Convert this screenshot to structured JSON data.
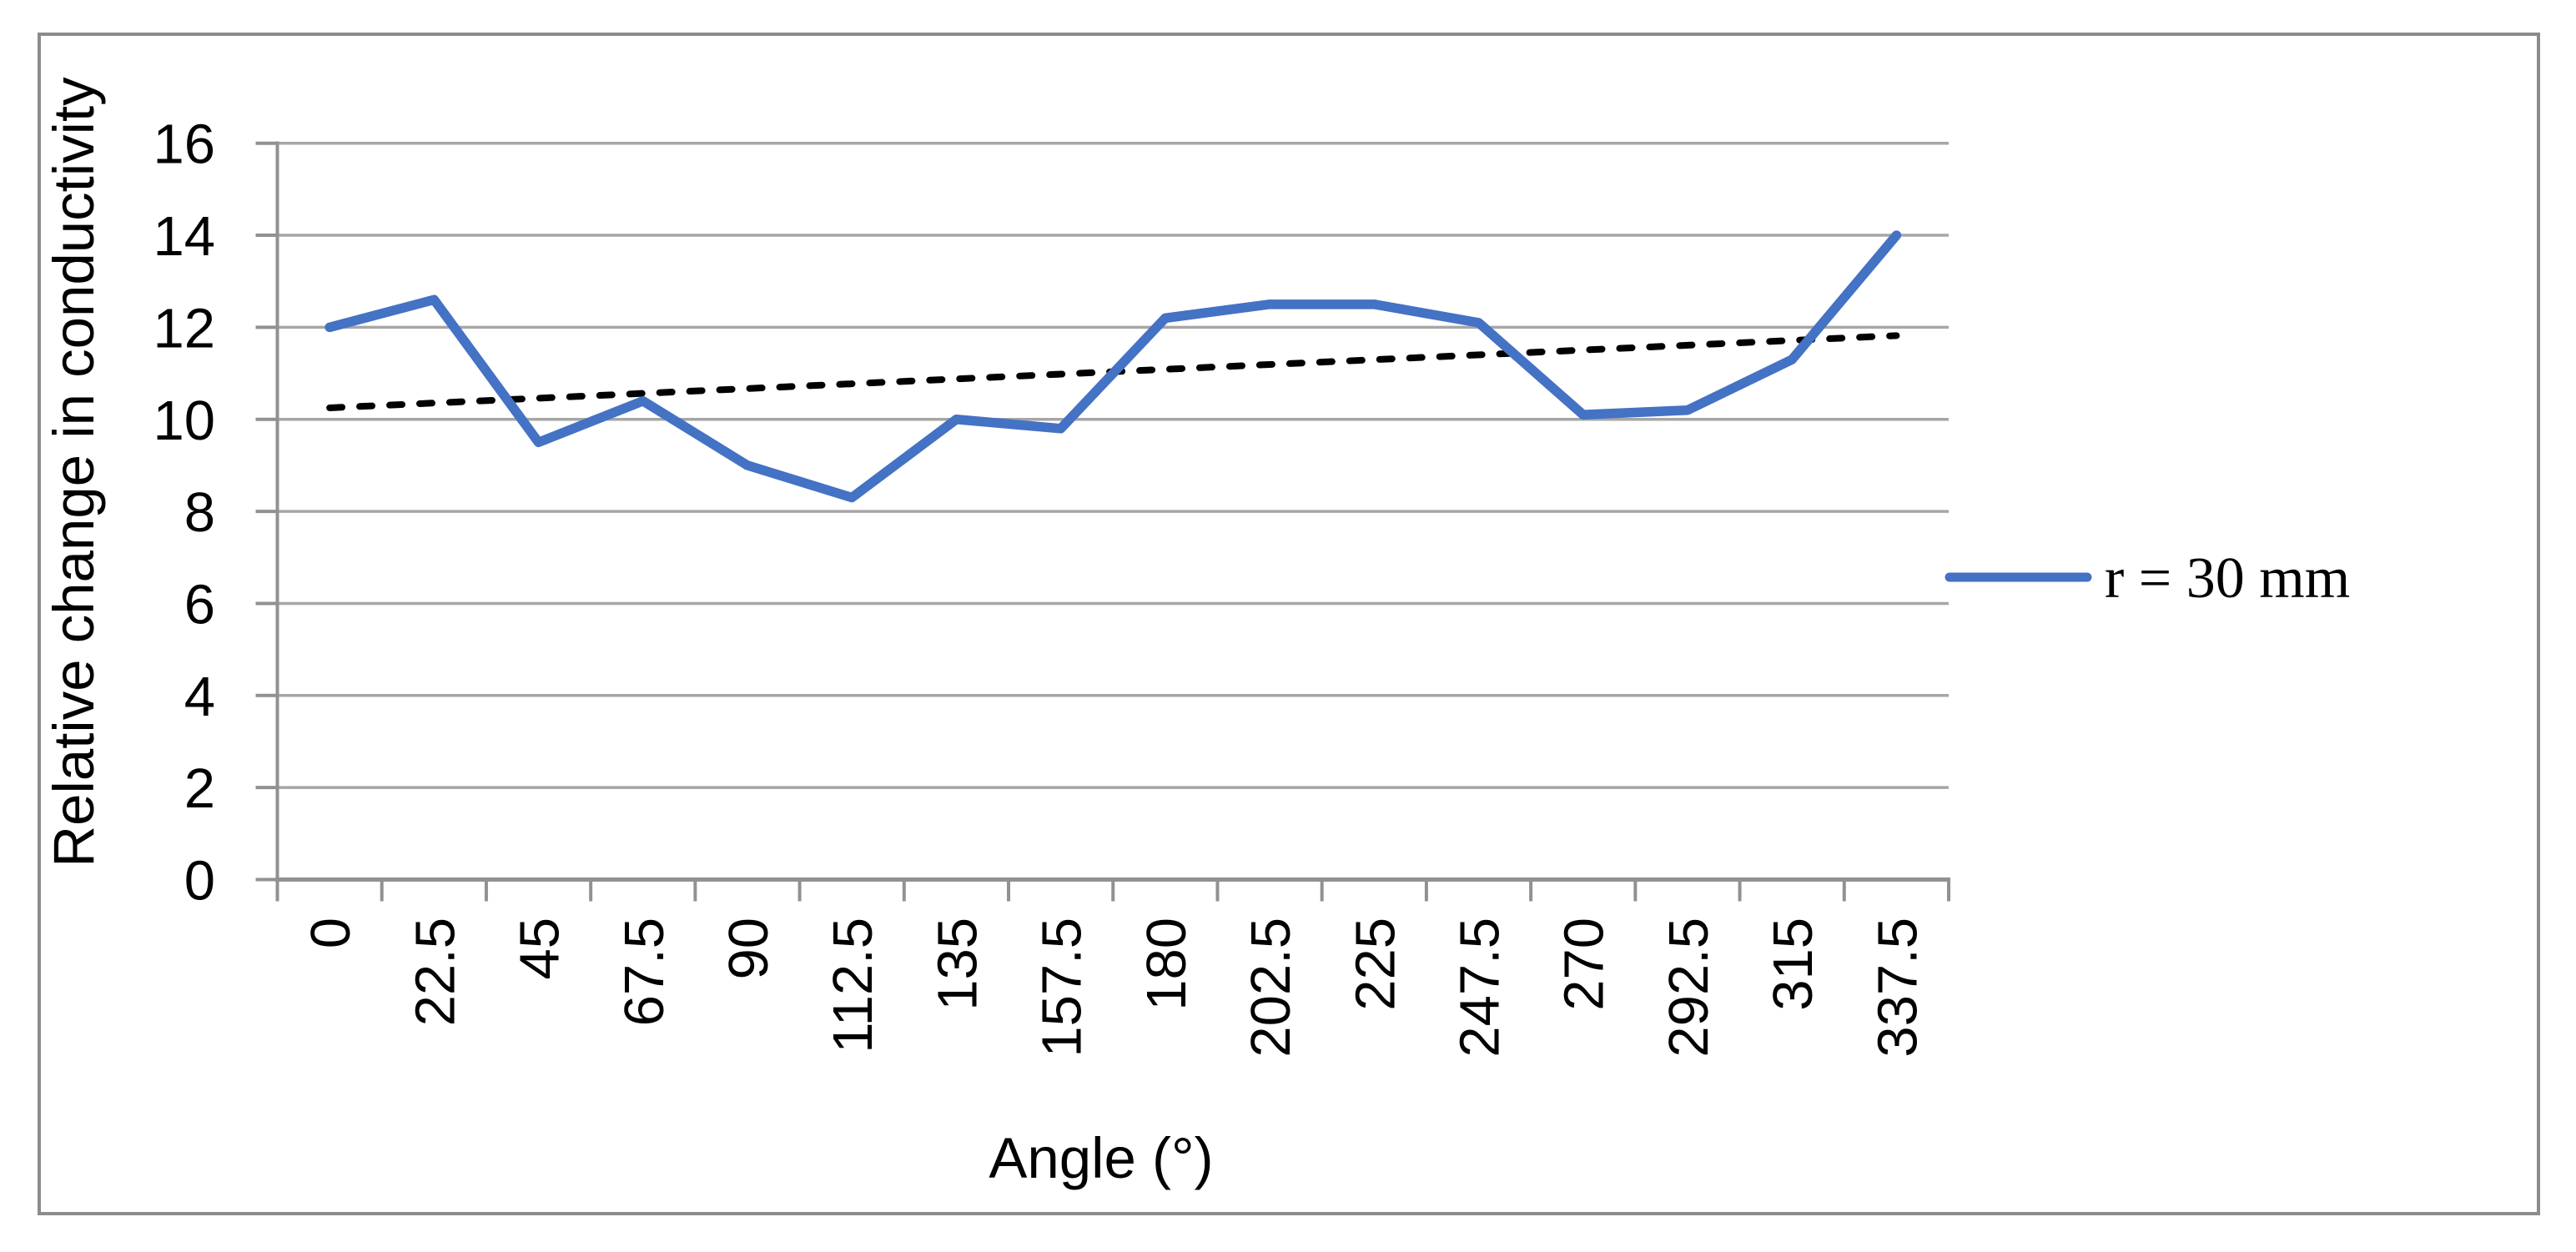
{
  "chart_data": {
    "type": "line",
    "title": "",
    "xlabel": "Angle (°)",
    "ylabel": "Relative change in conductivity",
    "categories": [
      "0",
      "22.5",
      "45",
      "67.5",
      "90",
      "112.5",
      "135",
      "157.5",
      "180",
      "202.5",
      "225",
      "247.5",
      "270",
      "292.5",
      "315",
      "337.5"
    ],
    "series": [
      {
        "name": "r = 30 mm",
        "color": "#4472C4",
        "values": [
          12,
          12.6,
          9.5,
          10.4,
          9,
          8.3,
          10,
          9.8,
          12.2,
          12.5,
          12.5,
          12.1,
          10.1,
          10.2,
          11.3,
          14
        ]
      }
    ],
    "trendline": {
      "type": "linear",
      "style": "dashed",
      "color": "#000000",
      "start_value": 10.25,
      "end_value": 11.82
    },
    "ylim": [
      0,
      16
    ],
    "ytick_step": 2,
    "grid": "horizontal-only",
    "legend_position": "right-middle"
  },
  "colors": {
    "series_blue": "#4472C4",
    "gridline": "#A6A6A6",
    "axis": "#919191",
    "border": "#8C8C8C",
    "text": "#000000",
    "background": "#FFFFFF"
  }
}
